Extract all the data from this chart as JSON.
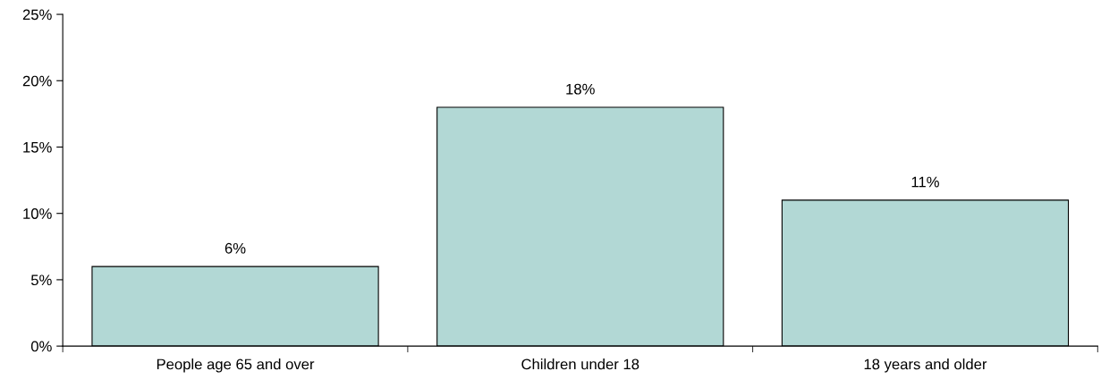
{
  "chart_data": {
    "type": "bar",
    "categories": [
      "People age 65 and over",
      "Children under 18",
      "18 years and older"
    ],
    "values": [
      6,
      18,
      11
    ],
    "value_labels": [
      "6%",
      "18%",
      "11%"
    ],
    "color": "#b2d8d5",
    "ylim": [
      0,
      25
    ],
    "yticks": [
      {
        "value": 0,
        "label": "0%"
      },
      {
        "value": 5,
        "label": "5%"
      },
      {
        "value": 10,
        "label": "10%"
      },
      {
        "value": 15,
        "label": "15%"
      },
      {
        "value": 20,
        "label": "20%"
      },
      {
        "value": 25,
        "label": "25%"
      }
    ],
    "grid": false,
    "legend": false
  }
}
